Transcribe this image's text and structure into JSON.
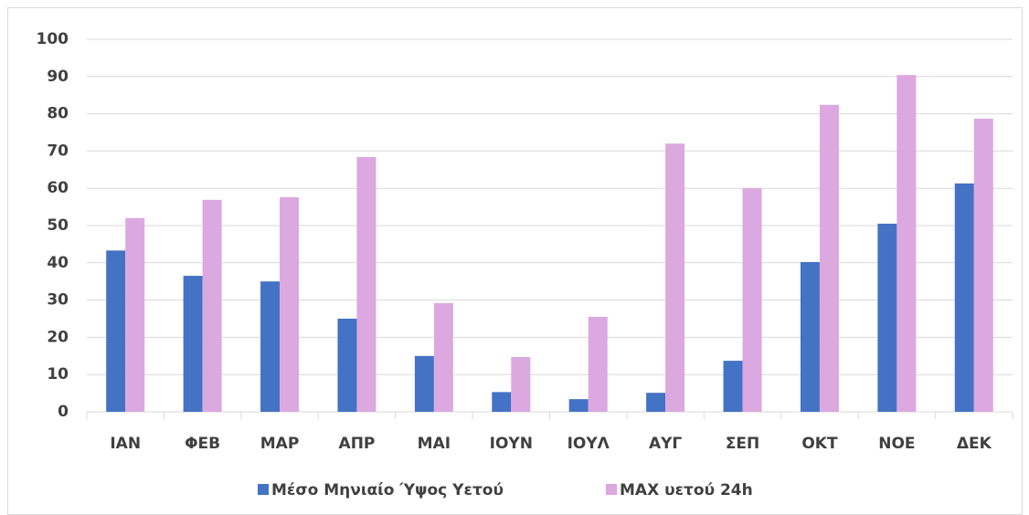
{
  "chart_data": {
    "type": "bar",
    "categories": [
      "ΙΑΝ",
      "ΦΕΒ",
      "ΜΑΡ",
      "ΑΠΡ",
      "ΜΑΙ",
      "ΙΟΥΝ",
      "ΙΟΥΛ",
      "ΑΥΓ",
      "ΣΕΠ",
      "ΟΚΤ",
      "ΝΟΕ",
      "ΔΕΚ"
    ],
    "series": [
      {
        "name": "Μέσο Μηνιαίο Ύψος Υετού",
        "color": "#4472c4",
        "values": [
          43.3,
          36.5,
          35,
          25,
          15,
          5.3,
          3.4,
          5.1,
          13.7,
          40.2,
          50.5,
          61.3
        ]
      },
      {
        "name": "MAX υετού 24h",
        "color": "#dca8e0",
        "values": [
          52,
          56.9,
          57.6,
          68.4,
          29.2,
          14.7,
          25.5,
          72,
          60,
          82.4,
          90.4,
          78.7
        ]
      }
    ],
    "ylim": [
      0,
      100
    ],
    "yticks": [
      0,
      10,
      20,
      30,
      40,
      50,
      60,
      70,
      80,
      90,
      100
    ],
    "grid": true,
    "legend": "bottom"
  }
}
